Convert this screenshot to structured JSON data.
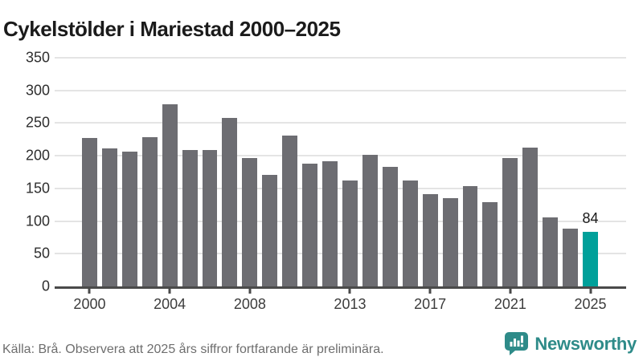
{
  "title": "Cykelstölder i Mariestad 2000–2025",
  "footer": {
    "source": "Källa: Brå. Observera att 2025 års siffror fortfarande är preliminära."
  },
  "branding": {
    "name": "Newsworthy",
    "icon": "newsworthy-chart-bubble-icon"
  },
  "colors": {
    "bar": "#6d6d72",
    "highlight": "#00a09a",
    "axis": "#4a4a4a",
    "grid": "#e4e4e4",
    "title_text": "#1b1b1b",
    "tick_text": "#3c3c3c",
    "footer_text": "#6e6e6e",
    "brand_teal": "#2e8b89"
  },
  "chart_data": {
    "type": "bar",
    "title": "Cykelstölder i Mariestad 2000–2025",
    "xlabel": "",
    "ylabel": "",
    "categories": [
      "2000",
      "2001",
      "2002",
      "2003",
      "2004",
      "2005",
      "2006",
      "2007",
      "2008",
      "2009",
      "2010",
      "2011",
      "2012",
      "2013",
      "2014",
      "2015",
      "2016",
      "2017",
      "2018",
      "2019",
      "2020",
      "2021",
      "2022",
      "2023",
      "2024",
      "2025"
    ],
    "values": [
      227,
      211,
      206,
      228,
      279,
      209,
      209,
      258,
      196,
      171,
      231,
      188,
      192,
      162,
      201,
      183,
      162,
      141,
      135,
      153,
      129,
      197,
      213,
      106,
      88,
      84
    ],
    "highlight_index": 25,
    "highlight_label": "84",
    "ylim": [
      0,
      350
    ],
    "yticks": [
      0,
      50,
      100,
      150,
      200,
      250,
      300,
      350
    ],
    "xtick_labels": [
      "2000",
      "2004",
      "2008",
      "2013",
      "2017",
      "2021",
      "2025"
    ],
    "xtick_indices": [
      0,
      4,
      8,
      13,
      17,
      21,
      25
    ],
    "grid": "horizontal",
    "legend": "none"
  }
}
